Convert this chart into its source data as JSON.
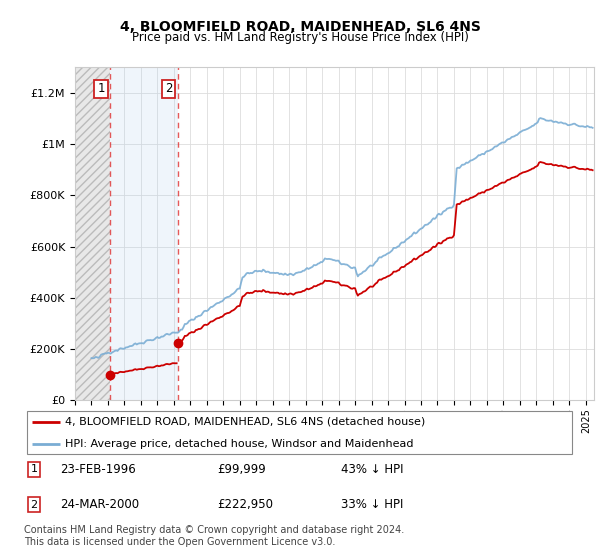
{
  "title": "4, BLOOMFIELD ROAD, MAIDENHEAD, SL6 4NS",
  "subtitle": "Price paid vs. HM Land Registry's House Price Index (HPI)",
  "sale1_date": 1996.13,
  "sale1_price": 99999,
  "sale1_label": "1",
  "sale2_date": 2000.23,
  "sale2_price": 222950,
  "sale2_label": "2",
  "hpi_color": "#7aadd4",
  "sale_color": "#cc0000",
  "legend_line1": "4, BLOOMFIELD ROAD, MAIDENHEAD, SL6 4NS (detached house)",
  "legend_line2": "HPI: Average price, detached house, Windsor and Maidenhead",
  "footnote": "Contains HM Land Registry data © Crown copyright and database right 2024.\nThis data is licensed under the Open Government Licence v3.0.",
  "ylim_min": 0,
  "ylim_max": 1300000,
  "xlim_min": 1994.0,
  "xlim_max": 2025.5
}
